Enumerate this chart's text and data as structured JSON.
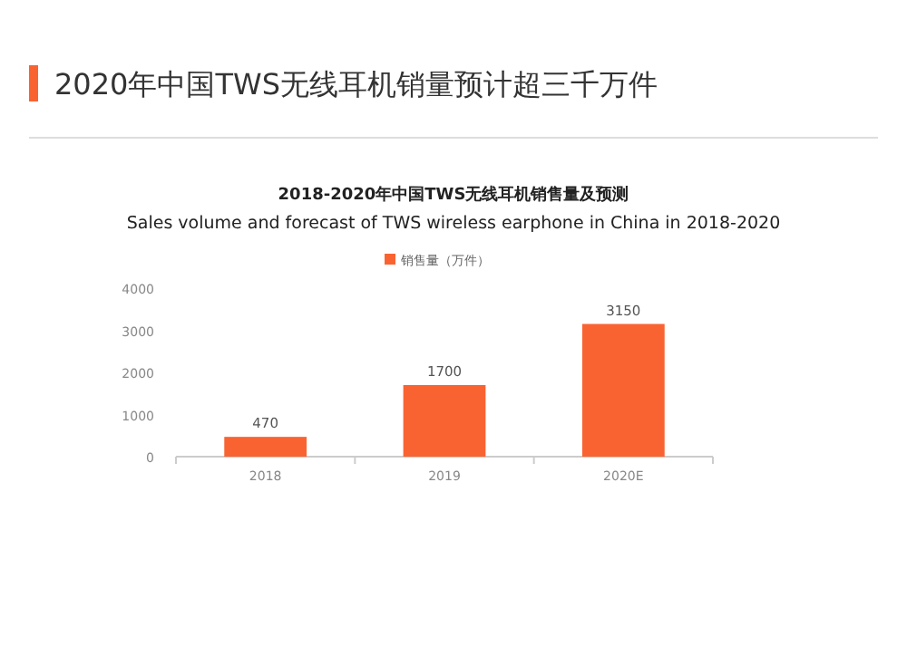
{
  "chart_data": {
    "type": "bar",
    "title": "2020年中国TWS无线耳机销量预计超三千万件",
    "subtitle": "2018-2020年中国TWS无线耳机销售量及预测\nSales volume and forecast of TWS wireless earphone in China in 2018-2020",
    "categories": [
      "2018",
      "2019",
      "2020E"
    ],
    "series": [
      {
        "name": "销售量（万件）",
        "color": "#f96332",
        "values": [
          470,
          1700,
          3150
        ]
      }
    ],
    "ylim": [
      0,
      4000
    ],
    "yticks": [
      0,
      1000,
      2000,
      3000,
      4000
    ],
    "grid": false,
    "legend": "top",
    "data_labels": true
  }
}
